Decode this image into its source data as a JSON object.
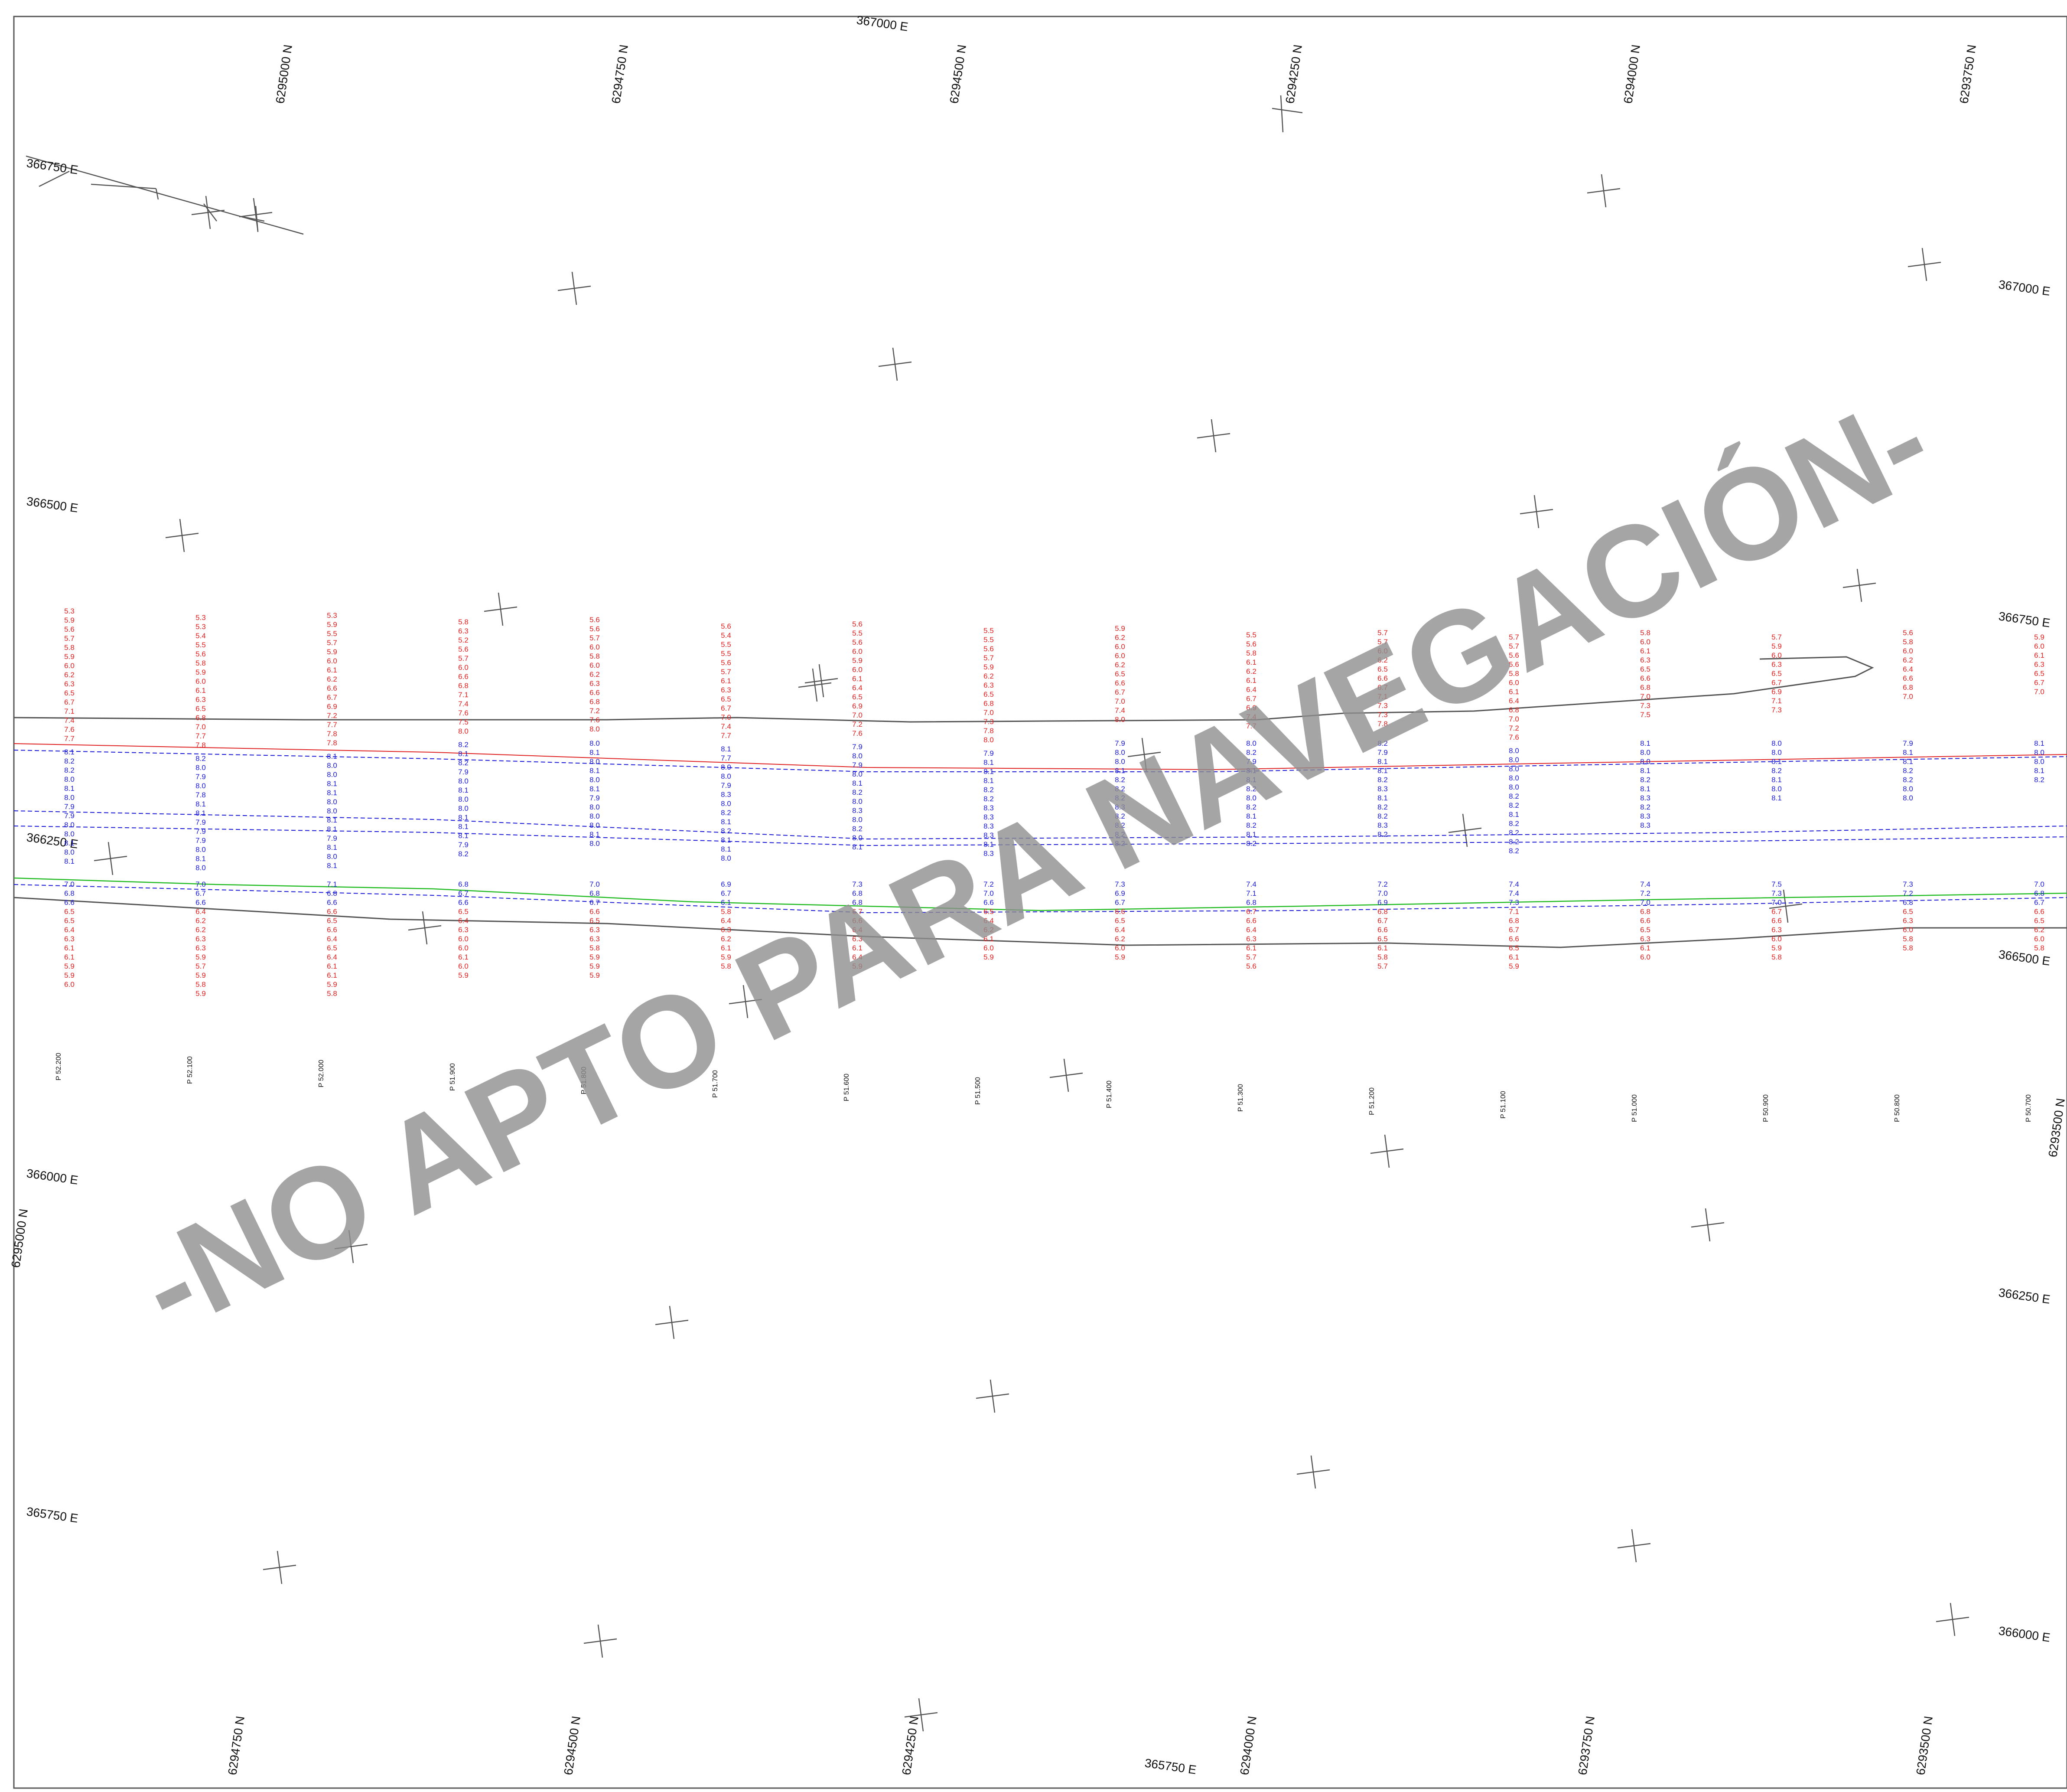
{
  "colors": {
    "frame": "#555555",
    "shoreline": "#555555",
    "channel_line_red": "#e02020",
    "channel_line_blue": "#1a1ad6",
    "green_line": "#22bb22",
    "watermark": "#8f8f8f"
  },
  "watermark": "-NO APTO PARA NAVEGACIÓN-",
  "labels_east": [
    "367000 E",
    "366750 E",
    "366500 E",
    "366250 E",
    "366000 E",
    "365750 E",
    "367000 E",
    "366750 E",
    "366500 E",
    "366250 E",
    "366000 E",
    "365750 E"
  ],
  "labels_north": [
    "6295000 N",
    "6294750 N",
    "6294500 N",
    "6294250 N",
    "6294000 N",
    "6293750 N",
    "6295000 N",
    "6293500 N",
    "6294750 N",
    "6294500 N",
    "6294250 N",
    "6294000 N",
    "6293750 N",
    "6293500 N"
  ],
  "profiles": [
    {
      "pk": "P 52.200",
      "top": [
        "5.3",
        "5.9",
        "5.6",
        "5.7",
        "5.8",
        "5.9",
        "6.0",
        "6.2",
        "6.3",
        "6.5",
        "6.7",
        "7.1",
        "7.4",
        "7.6",
        "7.7"
      ],
      "mid": [
        "8.1",
        "8.2",
        "8.2",
        "8.0",
        "8.1",
        "8.0",
        "7.9",
        "7.9",
        "8.0",
        "8.0",
        "8.1",
        "8.0",
        "8.1"
      ],
      "bot": [
        "7.0",
        "6.8",
        "6.6",
        "6.5",
        "6.5",
        "6.4",
        "6.3",
        "6.1",
        "6.1",
        "5.9",
        "5.9",
        "6.0"
      ]
    },
    {
      "pk": "P 52.100",
      "top": [
        "5.3",
        "5.3",
        "5.4",
        "5.5",
        "5.6",
        "5.8",
        "5.9",
        "6.0",
        "6.1",
        "6.3",
        "6.5",
        "6.8",
        "7.0",
        "7.7",
        "7.8"
      ],
      "mid": [
        "8.2",
        "8.0",
        "7.9",
        "8.0",
        "7.8",
        "8.1",
        "8.1",
        "7.9",
        "7.9",
        "7.9",
        "8.0",
        "8.1",
        "8.0"
      ],
      "bot": [
        "7.0",
        "6.7",
        "6.6",
        "6.4",
        "6.2",
        "6.2",
        "6.3",
        "6.3",
        "5.9",
        "5.7",
        "5.9",
        "5.8",
        "5.9"
      ]
    },
    {
      "pk": "P 52.000",
      "top": [
        "5.3",
        "5.9",
        "5.5",
        "5.7",
        "5.9",
        "6.0",
        "6.1",
        "6.2",
        "6.6",
        "6.7",
        "6.9",
        "7.2",
        "7.7",
        "7.8",
        "7.8"
      ],
      "mid": [
        "8.1",
        "8.0",
        "8.0",
        "8.1",
        "8.1",
        "8.0",
        "8.0",
        "8.1",
        "8.1",
        "7.9",
        "8.1",
        "8.0",
        "8.1"
      ],
      "bot": [
        "7.1",
        "6.8",
        "6.6",
        "6.6",
        "6.5",
        "6.6",
        "6.4",
        "6.5",
        "6.4",
        "6.1",
        "6.1",
        "5.9",
        "5.8"
      ]
    },
    {
      "pk": "P 51.900",
      "top": [
        "5.8",
        "6.3",
        "5.2",
        "5.6",
        "5.7",
        "6.0",
        "6.6",
        "6.8",
        "7.1",
        "7.4",
        "7.6",
        "7.5",
        "8.0"
      ],
      "mid": [
        "8.2",
        "8.1",
        "8.2",
        "7.9",
        "8.0",
        "8.1",
        "8.0",
        "8.0",
        "8.1",
        "8.1",
        "8.1",
        "7.9",
        "8.2"
      ],
      "bot": [
        "6.8",
        "6.7",
        "6.6",
        "6.5",
        "6.4",
        "6.3",
        "6.0",
        "6.0",
        "6.1",
        "6.0",
        "5.9"
      ]
    },
    {
      "pk": "P 51.800",
      "top": [
        "5.6",
        "5.6",
        "5.7",
        "6.0",
        "5.8",
        "6.0",
        "6.2",
        "6.3",
        "6.6",
        "6.8",
        "7.2",
        "7.6",
        "8.0"
      ],
      "mid": [
        "8.0",
        "8.1",
        "8.0",
        "8.1",
        "8.0",
        "8.1",
        "7.9",
        "8.0",
        "8.0",
        "8.0",
        "8.1",
        "8.0"
      ],
      "bot": [
        "7.0",
        "6.8",
        "6.7",
        "6.6",
        "6.5",
        "6.3",
        "6.3",
        "5.8",
        "5.9",
        "5.9",
        "5.9"
      ]
    },
    {
      "pk": "P 51.700",
      "top": [
        "5.6",
        "5.4",
        "5.5",
        "5.5",
        "5.6",
        "5.7",
        "6.1",
        "6.3",
        "6.5",
        "6.7",
        "7.0",
        "7.4",
        "7.7"
      ],
      "mid": [
        "8.1",
        "7.7",
        "8.0",
        "8.0",
        "7.9",
        "8.3",
        "8.0",
        "8.2",
        "8.1",
        "8.2",
        "8.1",
        "8.1",
        "8.0"
      ],
      "bot": [
        "6.9",
        "6.7",
        "6.1",
        "5.8",
        "6.4",
        "6.3",
        "6.2",
        "6.1",
        "5.9",
        "5.8"
      ]
    },
    {
      "pk": "P 51.600",
      "top": [
        "5.6",
        "5.5",
        "5.6",
        "6.0",
        "5.9",
        "6.0",
        "6.1",
        "6.4",
        "6.5",
        "6.9",
        "7.0",
        "7.2",
        "7.6"
      ],
      "mid": [
        "7.9",
        "8.0",
        "7.9",
        "8.0",
        "8.1",
        "8.2",
        "8.0",
        "8.3",
        "8.0",
        "8.2",
        "8.0",
        "8.1"
      ],
      "bot": [
        "7.3",
        "6.8",
        "6.8",
        "6.7",
        "6.6",
        "6.4",
        "6.3",
        "6.1",
        "6.4",
        "5.9"
      ]
    },
    {
      "pk": "P 51.500",
      "top": [
        "5.5",
        "5.5",
        "5.6",
        "5.7",
        "5.9",
        "6.2",
        "6.3",
        "6.5",
        "6.8",
        "7.0",
        "7.3",
        "7.8",
        "8.0"
      ],
      "mid": [
        "7.9",
        "8.1",
        "8.1",
        "8.1",
        "8.2",
        "8.2",
        "8.3",
        "8.3",
        "8.3",
        "8.3",
        "8.1",
        "8.3"
      ],
      "bot": [
        "7.2",
        "7.0",
        "6.6",
        "6.5",
        "6.4",
        "6.2",
        "6.1",
        "6.0",
        "5.9"
      ]
    },
    {
      "pk": "P 51.400",
      "top": [
        "5.9",
        "6.2",
        "6.0",
        "6.0",
        "6.2",
        "6.5",
        "6.6",
        "6.7",
        "7.0",
        "7.4",
        "8.0"
      ],
      "mid": [
        "7.9",
        "8.0",
        "8.0",
        "8.1",
        "8.2",
        "8.2",
        "8.2",
        "8.3",
        "8.2",
        "8.2",
        "8.2",
        "8.2"
      ],
      "bot": [
        "7.3",
        "6.9",
        "6.7",
        "6.6",
        "6.5",
        "6.4",
        "6.2",
        "6.0",
        "5.9"
      ]
    },
    {
      "pk": "P 51.300",
      "top": [
        "5.5",
        "5.6",
        "5.8",
        "6.1",
        "6.2",
        "6.1",
        "6.4",
        "6.7",
        "6.9",
        "7.4",
        "7.7"
      ],
      "mid": [
        "8.0",
        "8.2",
        "7.9",
        "8.1",
        "8.1",
        "8.2",
        "8.0",
        "8.2",
        "8.1",
        "8.2",
        "8.1",
        "8.2"
      ],
      "bot": [
        "7.4",
        "7.1",
        "6.8",
        "6.7",
        "6.6",
        "6.4",
        "6.3",
        "6.1",
        "5.7",
        "5.6"
      ]
    },
    {
      "pk": "P 51.200",
      "top": [
        "5.7",
        "5.7",
        "6.0",
        "6.2",
        "6.5",
        "6.6",
        "6.7",
        "7.1",
        "7.3",
        "7.3",
        "7.8"
      ],
      "mid": [
        "8.2",
        "7.9",
        "8.1",
        "8.1",
        "8.2",
        "8.3",
        "8.1",
        "8.2",
        "8.2",
        "8.3",
        "8.2"
      ],
      "bot": [
        "7.2",
        "7.0",
        "6.9",
        "6.8",
        "6.7",
        "6.6",
        "6.5",
        "6.1",
        "5.8",
        "5.7"
      ]
    },
    {
      "pk": "P 51.100",
      "top": [
        "5.7",
        "5.7",
        "5.6",
        "5.6",
        "5.8",
        "6.0",
        "6.1",
        "6.4",
        "6.8",
        "7.0",
        "7.2",
        "7.6"
      ],
      "mid": [
        "8.0",
        "8.0",
        "8.0",
        "8.0",
        "8.0",
        "8.2",
        "8.2",
        "8.1",
        "8.2",
        "8.2",
        "8.2",
        "8.2"
      ],
      "bot": [
        "7.4",
        "7.4",
        "7.3",
        "7.1",
        "6.8",
        "6.7",
        "6.6",
        "6.5",
        "6.1",
        "5.9"
      ]
    },
    {
      "pk": "P 51.000",
      "top": [
        "5.8",
        "6.0",
        "6.1",
        "6.3",
        "6.5",
        "6.6",
        "6.8",
        "7.0",
        "7.3",
        "7.5"
      ],
      "mid": [
        "8.1",
        "8.0",
        "8.0",
        "8.1",
        "8.2",
        "8.1",
        "8.3",
        "8.2",
        "8.3",
        "8.3"
      ],
      "bot": [
        "7.4",
        "7.2",
        "7.0",
        "6.8",
        "6.6",
        "6.5",
        "6.3",
        "6.1",
        "6.0"
      ]
    },
    {
      "pk": "P 50.900",
      "top": [
        "5.7",
        "5.9",
        "6.0",
        "6.3",
        "6.5",
        "6.7",
        "6.9",
        "7.1",
        "7.3"
      ],
      "mid": [
        "8.0",
        "8.0",
        "8.1",
        "8.2",
        "8.1",
        "8.0",
        "8.1"
      ],
      "bot": [
        "7.5",
        "7.3",
        "7.0",
        "6.7",
        "6.6",
        "6.3",
        "6.0",
        "5.9",
        "5.8"
      ]
    },
    {
      "pk": "P 50.800",
      "top": [
        "5.6",
        "5.8",
        "6.0",
        "6.2",
        "6.4",
        "6.6",
        "6.8",
        "7.0"
      ],
      "mid": [
        "7.9",
        "8.1",
        "8.1",
        "8.2",
        "8.2",
        "8.0",
        "8.0"
      ],
      "bot": [
        "7.3",
        "7.2",
        "6.8",
        "6.5",
        "6.3",
        "6.0",
        "5.8",
        "5.8"
      ]
    },
    {
      "pk": "P 50.700",
      "top": [
        "5.9",
        "6.0",
        "6.1",
        "6.3",
        "6.5",
        "6.7",
        "7.0"
      ],
      "mid": [
        "8.1",
        "8.0",
        "8.0",
        "8.1",
        "8.2"
      ],
      "bot": [
        "7.0",
        "6.8",
        "6.7",
        "6.6",
        "6.5",
        "6.2",
        "6.0",
        "5.8"
      ]
    }
  ]
}
